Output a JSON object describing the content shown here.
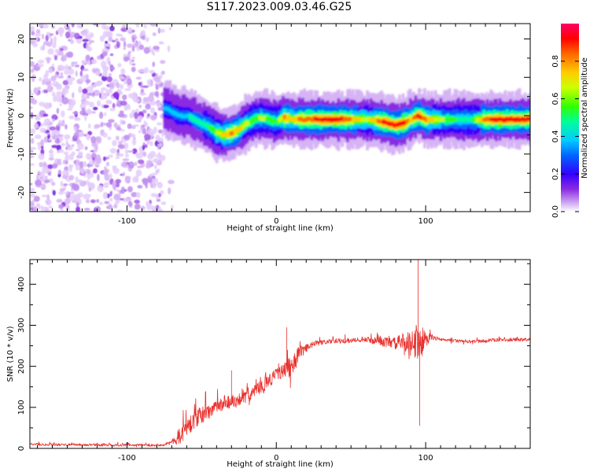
{
  "page": {
    "title": "S117.2023.009.03.46.G25"
  },
  "colors": {
    "snr_line": "#e8322f",
    "background": "#ffffff",
    "axis": "#000000",
    "colormap": [
      "#ffffff",
      "#d6b3f5",
      "#8a2be2",
      "#3300ff",
      "#0066ff",
      "#00ccff",
      "#00ff99",
      "#33ff00",
      "#ccff00",
      "#ffcc00",
      "#ff6600",
      "#ff0000",
      "#ff0066"
    ]
  },
  "chart_data": [
    {
      "type": "heatmap",
      "name": "spectrogram",
      "xlabel": "Height of straight line (km)",
      "ylabel": "Frequency (Hz)",
      "xlim": [
        -165,
        170
      ],
      "ylim": [
        -25,
        24
      ],
      "xticks": [
        -100,
        0,
        100
      ],
      "yticks": [
        -20,
        -10,
        0,
        10,
        20
      ],
      "noise_region_x": [
        -165,
        -75
      ],
      "ridge": {
        "x": [
          -75,
          -70,
          -65,
          -60,
          -55,
          -50,
          -45,
          -40,
          -35,
          -30,
          -25,
          -20,
          -15,
          -10,
          -5,
          0,
          5,
          10,
          20,
          30,
          40,
          50,
          60,
          70,
          75,
          80,
          85,
          90,
          95,
          100,
          110,
          120,
          130,
          140,
          150,
          160,
          170
        ],
        "y": [
          2,
          1,
          0,
          0,
          -1,
          -2,
          -3,
          -4.5,
          -5,
          -4.5,
          -3.5,
          -2,
          -1,
          -0.5,
          -1,
          -1.5,
          -0.5,
          -1,
          -1,
          -1,
          -1,
          -1,
          -1,
          -1.5,
          -2,
          -2.5,
          -2,
          -1,
          0,
          -1,
          -1,
          -1,
          -1,
          -1,
          -1,
          -1,
          -1
        ],
        "amplitude": [
          0.35,
          0.4,
          0.4,
          0.4,
          0.45,
          0.45,
          0.5,
          0.6,
          0.7,
          0.75,
          0.7,
          0.6,
          0.55,
          0.6,
          0.55,
          0.5,
          0.75,
          0.7,
          0.8,
          0.85,
          0.9,
          0.75,
          0.6,
          0.8,
          0.9,
          0.85,
          0.9,
          0.7,
          0.9,
          0.75,
          0.6,
          0.5,
          0.45,
          0.8,
          0.9,
          0.85,
          0.9
        ]
      },
      "colorbar": {
        "label": "Normalized spectral amplitude",
        "range": [
          0,
          1
        ],
        "ticks": [
          "0.0",
          "0.2",
          "0.4",
          "0.6",
          "0.8"
        ]
      }
    },
    {
      "type": "line",
      "name": "snr",
      "xlabel": "Height of straight line (km)",
      "ylabel": "SNR (10 * v/v)",
      "xlim": [
        -165,
        170
      ],
      "ylim": [
        0,
        460
      ],
      "xticks": [
        -100,
        0,
        100
      ],
      "yticks": [
        0,
        100,
        200,
        300,
        400
      ],
      "envelope": {
        "x": [
          -165,
          -140,
          -120,
          -100,
          -80,
          -75,
          -70,
          -65,
          -60,
          -55,
          -50,
          -45,
          -40,
          -35,
          -30,
          -25,
          -20,
          -15,
          -10,
          -5,
          0,
          5,
          10,
          15,
          20,
          25,
          30,
          40,
          50,
          60,
          70,
          80,
          85,
          90,
          95,
          100,
          105,
          110,
          120,
          130,
          140,
          150,
          160,
          170
        ],
        "y": [
          10,
          9,
          8,
          8,
          8,
          10,
          15,
          30,
          50,
          70,
          80,
          90,
          100,
          110,
          115,
          120,
          125,
          140,
          150,
          165,
          180,
          190,
          200,
          230,
          245,
          255,
          258,
          262,
          262,
          265,
          260,
          255,
          260,
          255,
          260,
          265,
          270,
          265,
          262,
          260,
          262,
          265,
          265,
          265
        ],
        "noise": [
          6,
          6,
          6,
          6,
          6,
          8,
          12,
          40,
          45,
          45,
          45,
          40,
          35,
          35,
          35,
          30,
          30,
          35,
          30,
          35,
          30,
          35,
          60,
          40,
          20,
          15,
          12,
          12,
          12,
          12,
          20,
          30,
          45,
          60,
          100,
          40,
          12,
          8,
          8,
          8,
          8,
          8,
          8,
          8
        ]
      },
      "peaks": [
        {
          "x": 95,
          "y": 460
        },
        {
          "x": 96,
          "y": 55
        },
        {
          "x": 7,
          "y": 295
        },
        {
          "x": -30,
          "y": 190
        }
      ]
    }
  ]
}
